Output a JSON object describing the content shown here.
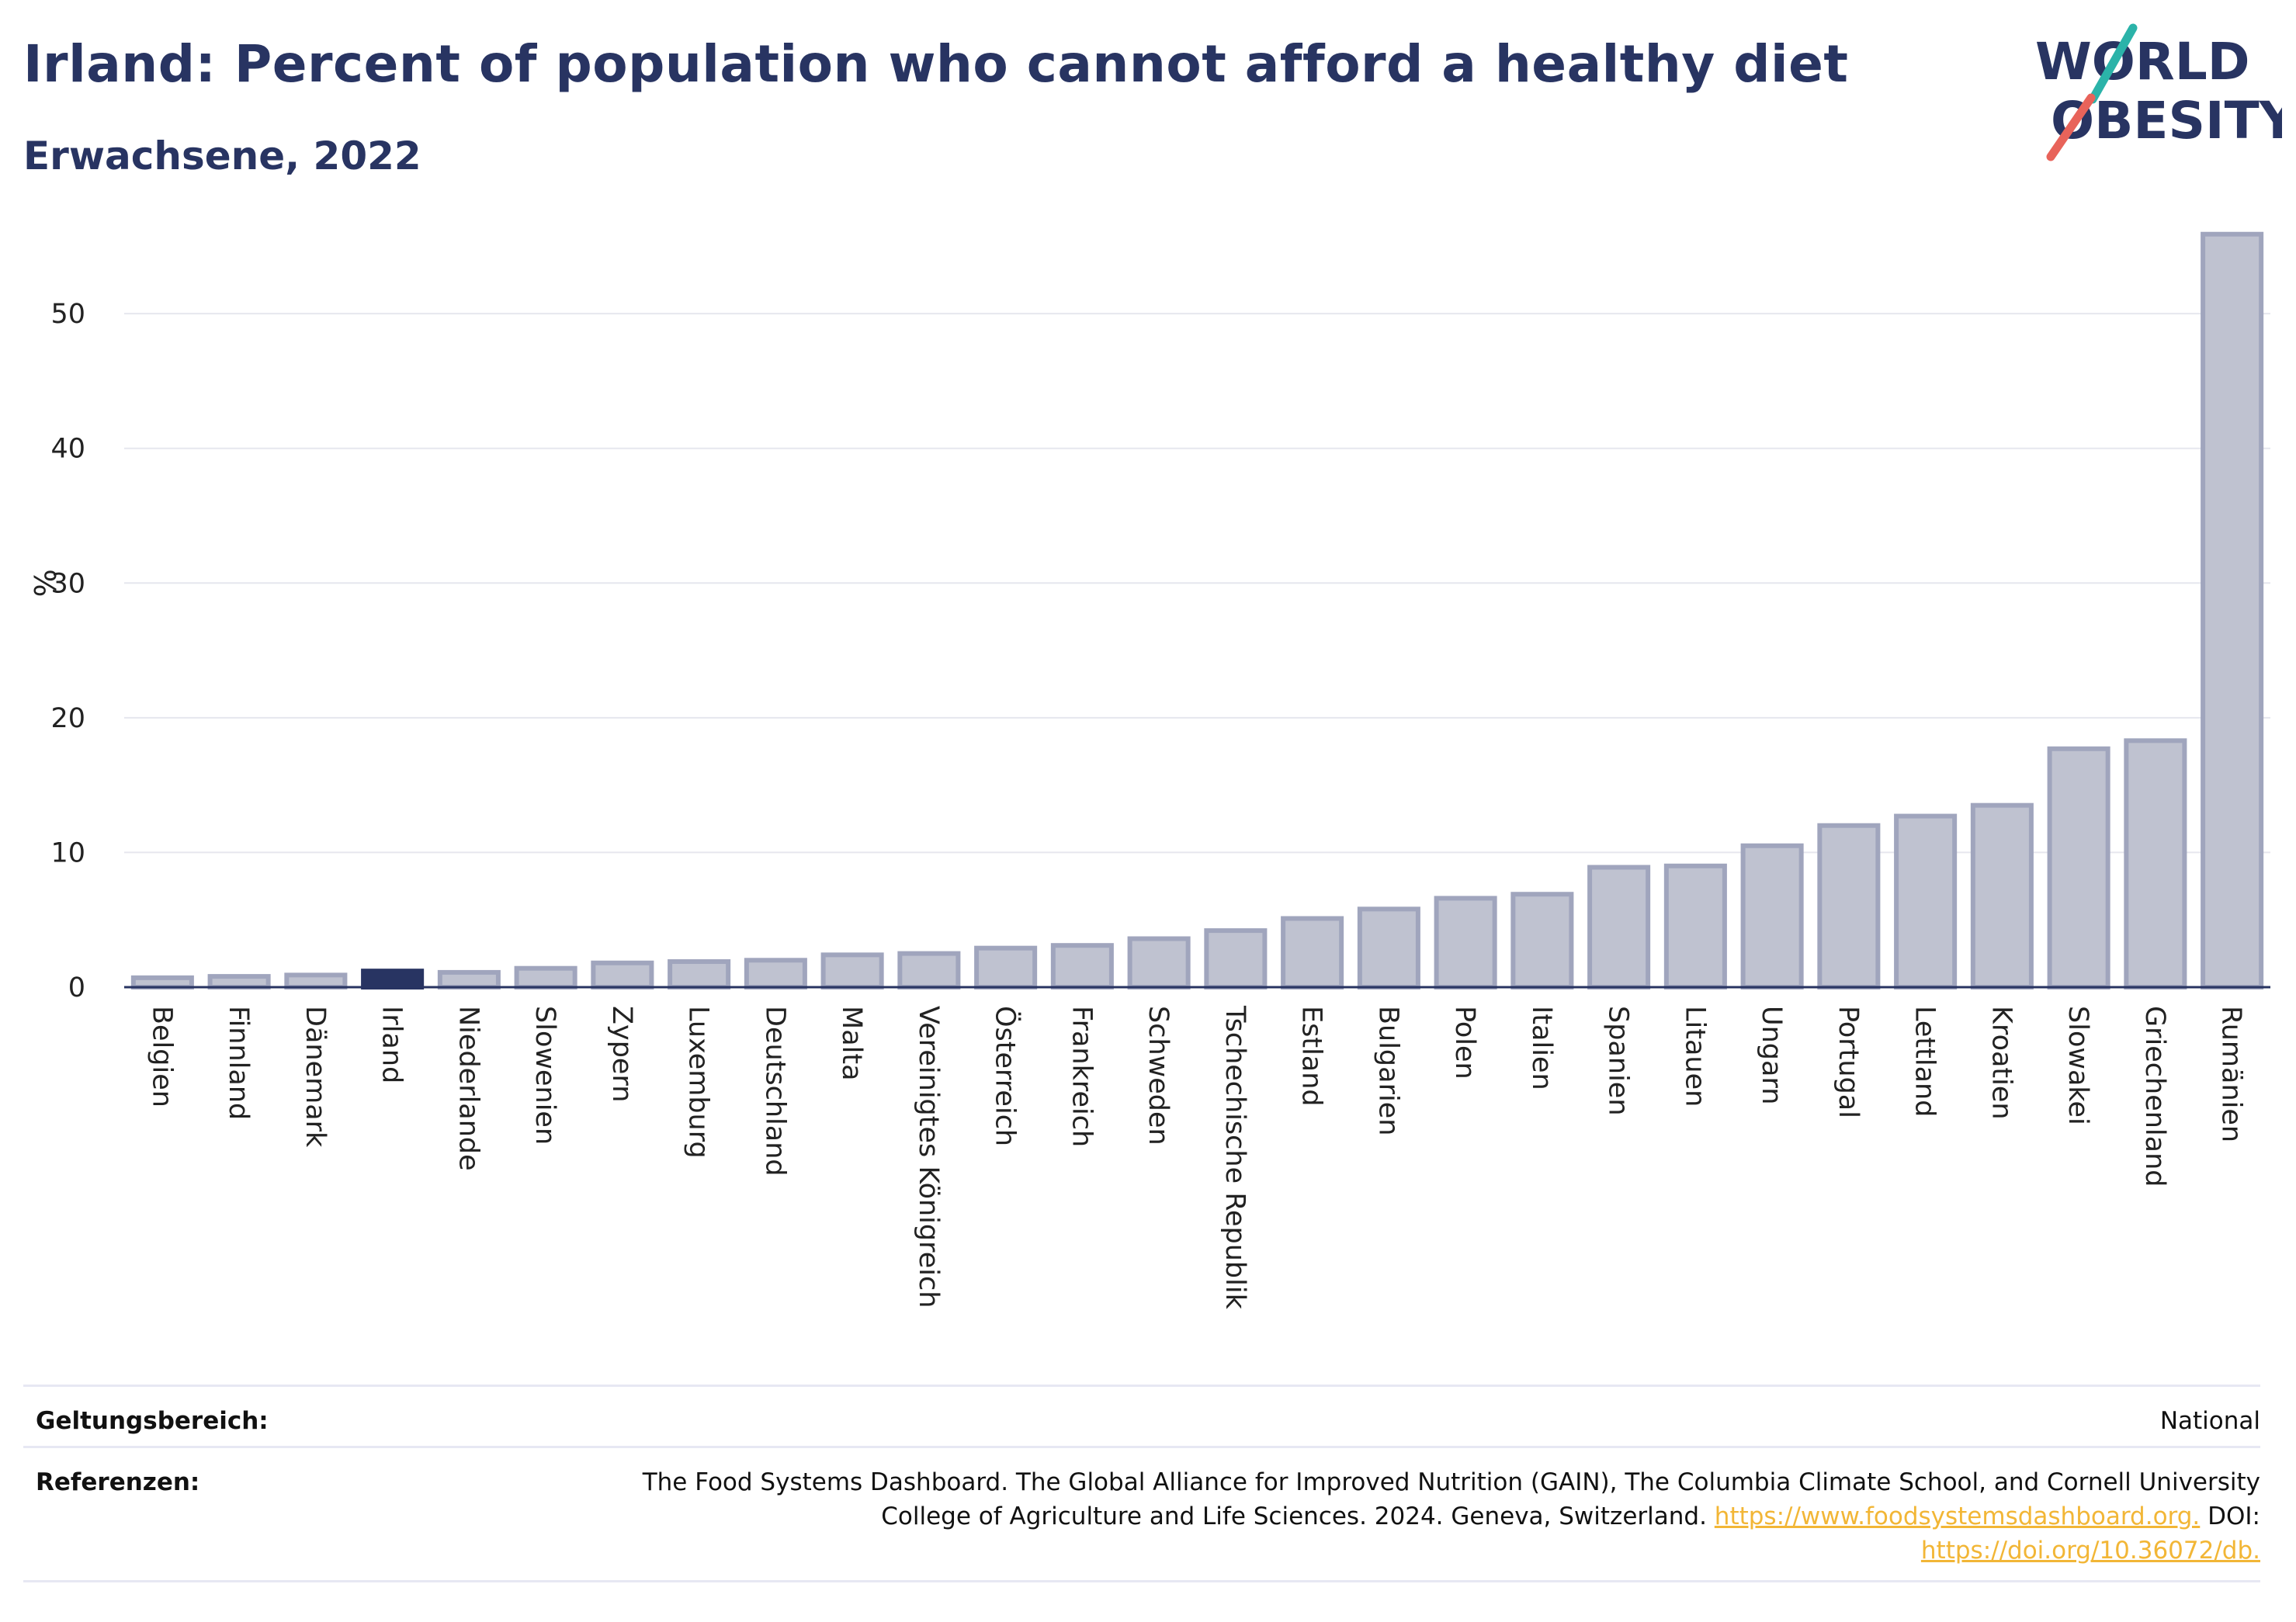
{
  "header": {
    "title": "Irland: Percent of population who cannot afford a healthy diet",
    "subtitle": "Erwachsene, 2022"
  },
  "logo": {
    "line1": "WORLD",
    "line2": "OBESITY",
    "accent_teal": "#2bb3a9",
    "accent_red": "#e8635a",
    "text_color": "#283462"
  },
  "chart_data": {
    "type": "bar",
    "title": "Irland: Percent of population who cannot afford a healthy diet",
    "subtitle": "Erwachsene, 2022",
    "ylabel": "%",
    "xlabel": "",
    "ylim": [
      0,
      56
    ],
    "yticks": [
      0,
      10,
      20,
      30,
      40,
      50
    ],
    "grid": true,
    "highlight": "Irland",
    "colors": {
      "bar": "#bfc2d0",
      "bar_edge": "#a0a5bd",
      "highlight": "#283462",
      "grid": "#e6e7ee",
      "axis": "#283462"
    },
    "categories": [
      "Belgien",
      "Finnland",
      "Dänemark",
      "Irland",
      "Niederlande",
      "Slowenien",
      "Zypern",
      "Luxemburg",
      "Deutschland",
      "Malta",
      "Vereinigtes Königreich",
      "Österreich",
      "Frankreich",
      "Schweden",
      "Tschechische Republik",
      "Estland",
      "Bulgarien",
      "Polen",
      "Italien",
      "Spanien",
      "Litauen",
      "Ungarn",
      "Portugal",
      "Lettland",
      "Kroatien",
      "Slowakei",
      "Griechenland",
      "Rumänien"
    ],
    "values": [
      0.7,
      0.8,
      0.9,
      1.2,
      1.1,
      1.4,
      1.8,
      1.9,
      2.0,
      2.4,
      2.5,
      2.9,
      3.1,
      3.6,
      4.2,
      5.1,
      5.8,
      6.6,
      6.9,
      8.9,
      9.0,
      10.5,
      12.0,
      12.7,
      13.5,
      17.7,
      18.3,
      55.9
    ]
  },
  "footer": {
    "scope_label": "Geltungsbereich:",
    "scope_value": "National",
    "ref_label": "Referenzen:",
    "ref_text_1": "The Food Systems Dashboard. The Global Alliance for Improved Nutrition (GAIN), The Columbia Climate School, and Cornell University",
    "ref_text_2": "College of Agriculture and Life Sciences. 2024. Geneva, Switzerland.",
    "ref_link_1": "https://www.foodsystemsdashboard.org.",
    "ref_text_3": "DOI:",
    "ref_link_2": "https://doi.org/10.36072/db."
  }
}
